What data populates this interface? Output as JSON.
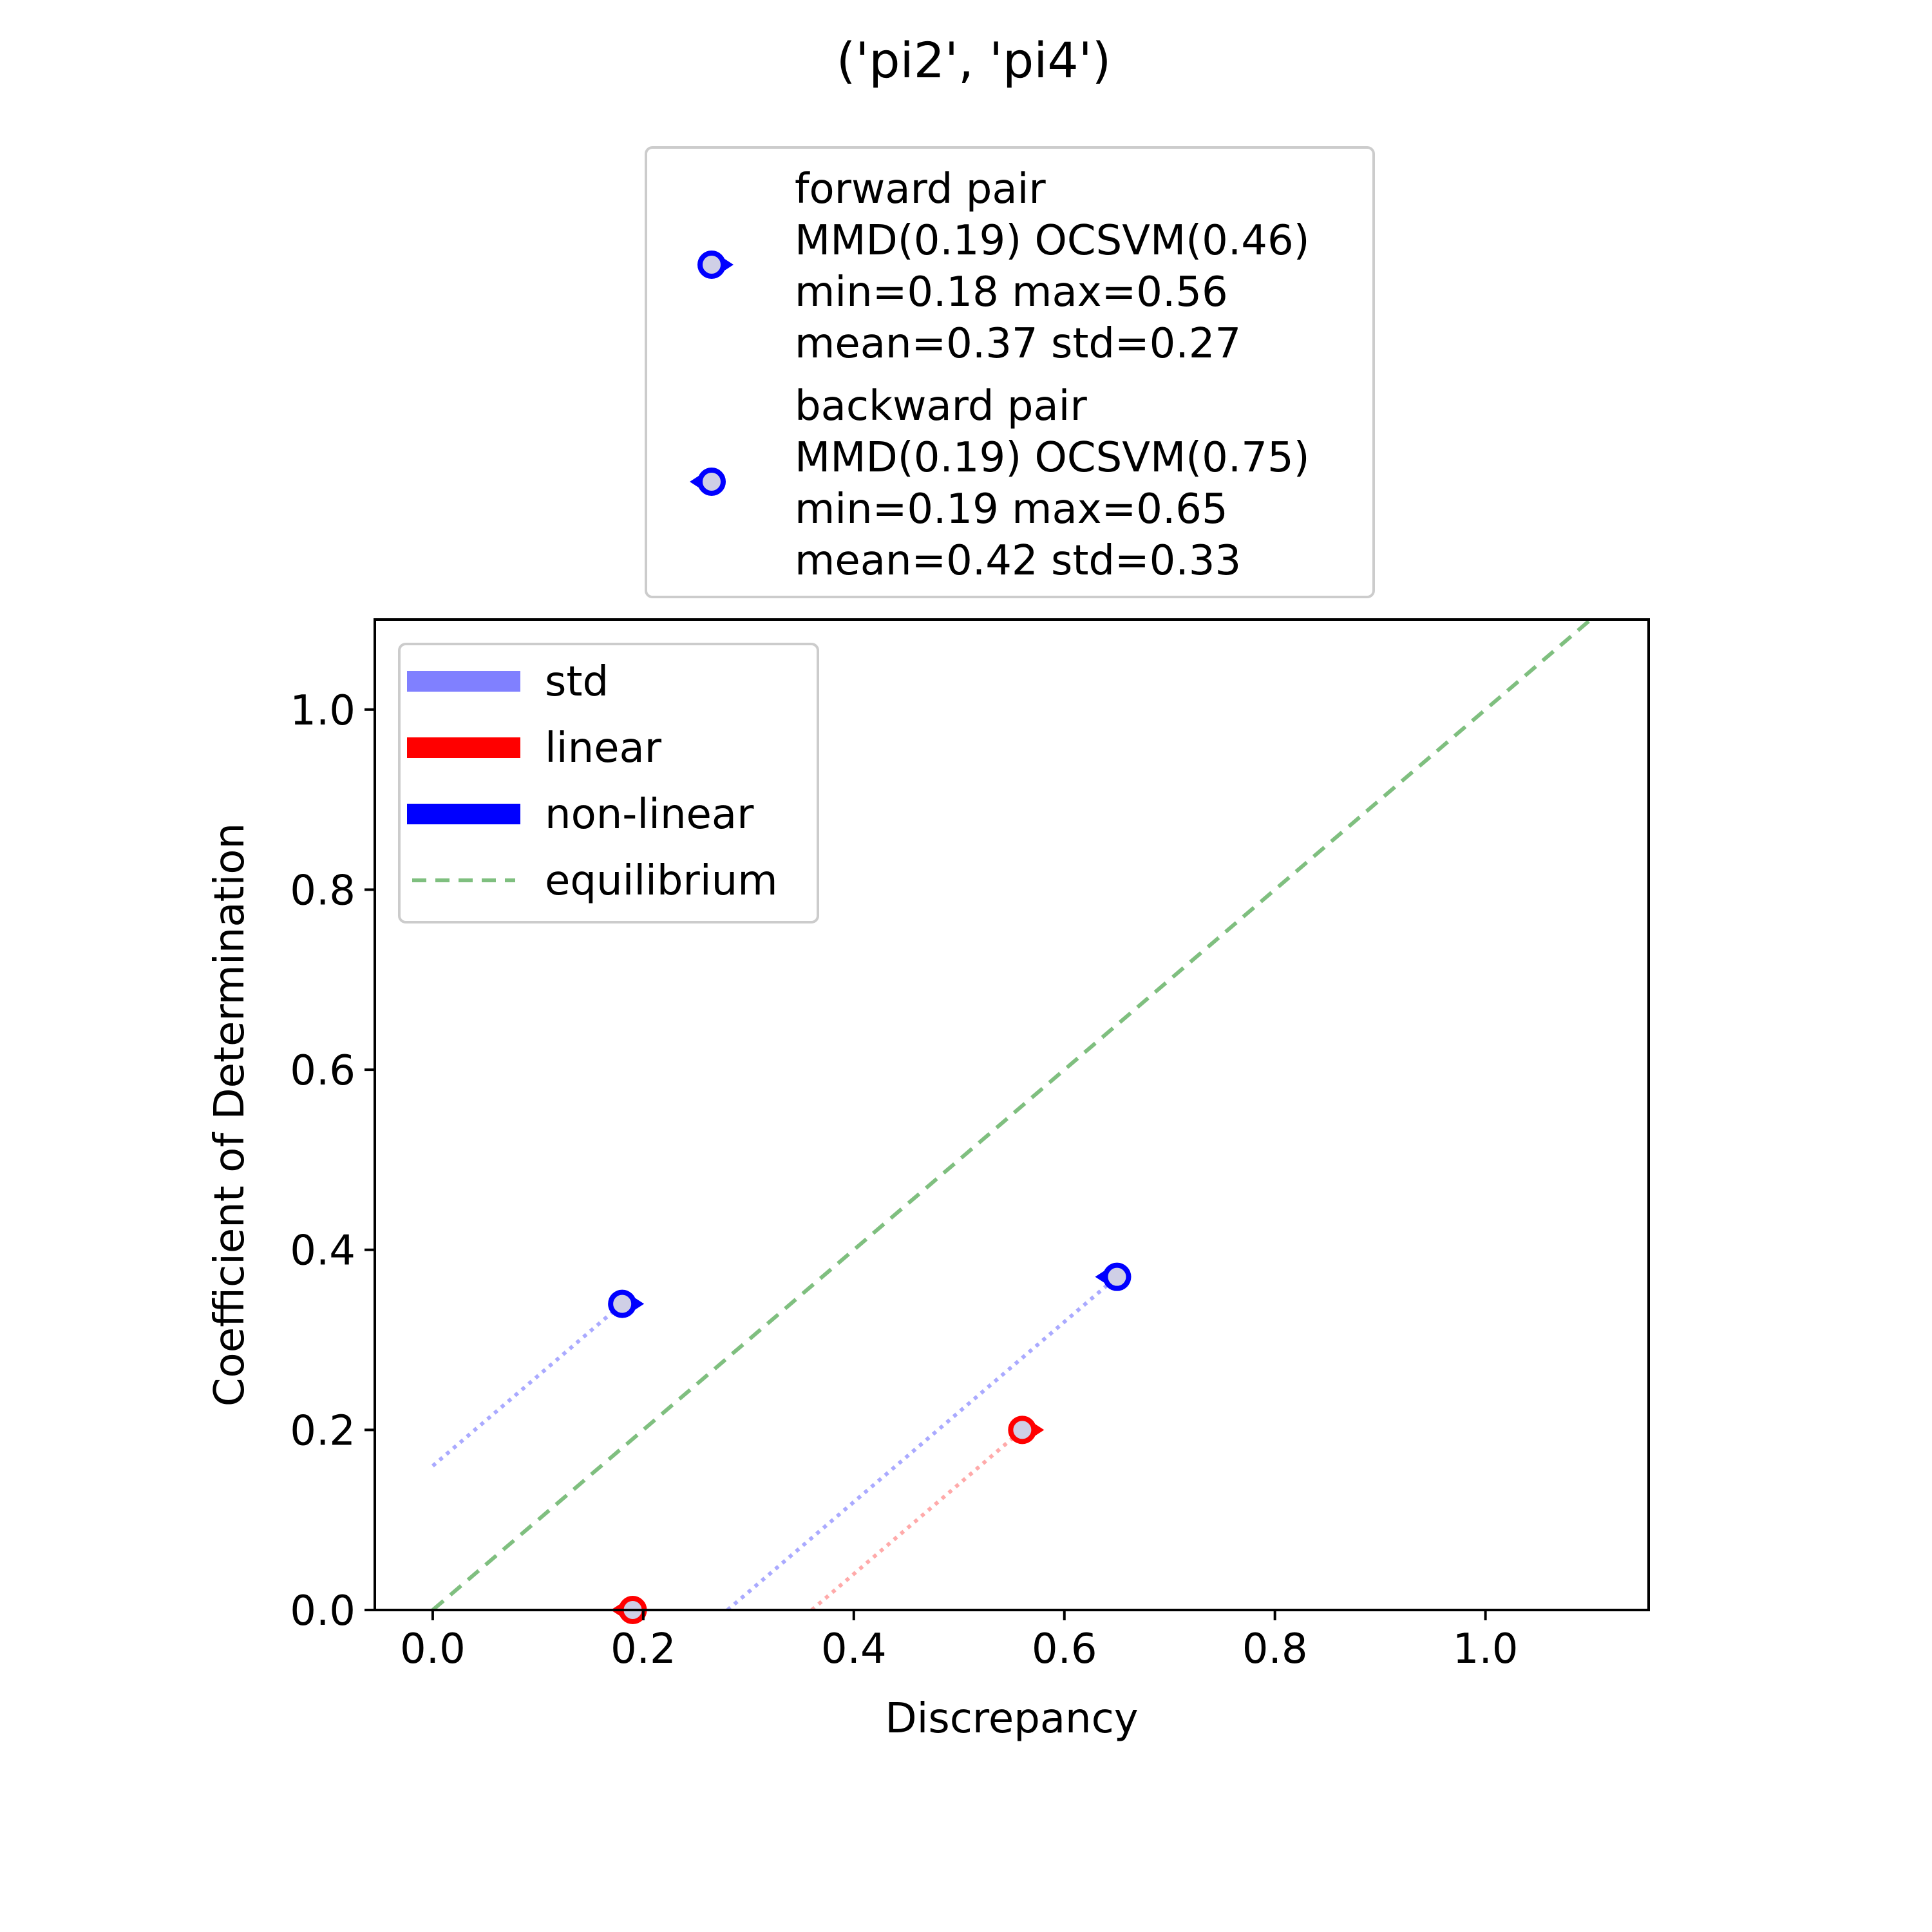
{
  "chart_data": {
    "type": "scatter",
    "title": "('pi2', 'pi4')",
    "xlabel": "Discrepancy",
    "ylabel": "Coefficient of Determination",
    "xlim": [
      -0.055,
      1.155
    ],
    "ylim": [
      0.0,
      1.1
    ],
    "xticks": [
      0.0,
      0.2,
      0.4,
      0.6,
      0.8,
      1.0
    ],
    "xtick_labels": [
      "0.0",
      "0.2",
      "0.4",
      "0.6",
      "0.8",
      "1.0"
    ],
    "yticks": [
      0.0,
      0.2,
      0.4,
      0.6,
      0.8,
      1.0
    ],
    "ytick_labels": [
      "0.0",
      "0.2",
      "0.4",
      "0.6",
      "0.8",
      "1.0"
    ],
    "grid": false,
    "equilibrium": {
      "x": [
        0.0,
        1.1
      ],
      "y": [
        0.0,
        1.1
      ],
      "color": "#7fbf7f"
    },
    "points": [
      {
        "pair": "forward",
        "model": "non-linear",
        "x": 0.18,
        "y": 0.34,
        "color": "#0000ff",
        "marker": "circle-arrow-right"
      },
      {
        "pair": "forward",
        "model": "linear",
        "x": 0.56,
        "y": 0.2,
        "color": "#ff0000",
        "marker": "circle-arrow-right"
      },
      {
        "pair": "backward",
        "model": "non-linear",
        "x": 0.65,
        "y": 0.37,
        "color": "#0000ff",
        "marker": "circle-arrow-left"
      },
      {
        "pair": "backward",
        "model": "linear",
        "x": 0.19,
        "y": 0.0,
        "color": "#ff0000",
        "marker": "circle-arrow-left"
      }
    ],
    "std_lines": [
      {
        "x": [
          0.0,
          0.18
        ],
        "y": [
          0.16,
          0.34
        ],
        "color": "#aaaaff"
      },
      {
        "x": [
          0.28,
          0.65
        ],
        "y": [
          0.0,
          0.37
        ],
        "color": "#aaaaff"
      },
      {
        "x": [
          0.36,
          0.56
        ],
        "y": [
          0.0,
          0.2
        ],
        "color": "#ffaaaa"
      }
    ],
    "legend_top": {
      "placement": "top-center",
      "entries": [
        {
          "lines": [
            "forward pair",
            "MMD(0.19) OCSVM(0.46)",
            "min=0.18 max=0.56",
            "mean=0.37 std=0.27"
          ],
          "marker": "circle-arrow-right",
          "color": "#0000ff"
        },
        {
          "lines": [
            "backward pair",
            "MMD(0.19) OCSVM(0.75)",
            "min=0.19 max=0.65",
            "mean=0.42 std=0.33"
          ],
          "marker": "circle-arrow-left",
          "color": "#0000ff"
        }
      ]
    },
    "legend_inner": {
      "placement": "upper-left",
      "entries": [
        {
          "label": "std",
          "style": "solid-thick",
          "color": "#8080ff"
        },
        {
          "label": "linear",
          "style": "solid-thick",
          "color": "#ff0000"
        },
        {
          "label": "non-linear",
          "style": "solid-thick",
          "color": "#0000ff"
        },
        {
          "label": "equilibrium",
          "style": "dashed",
          "color": "#7fbf7f"
        }
      ]
    }
  }
}
